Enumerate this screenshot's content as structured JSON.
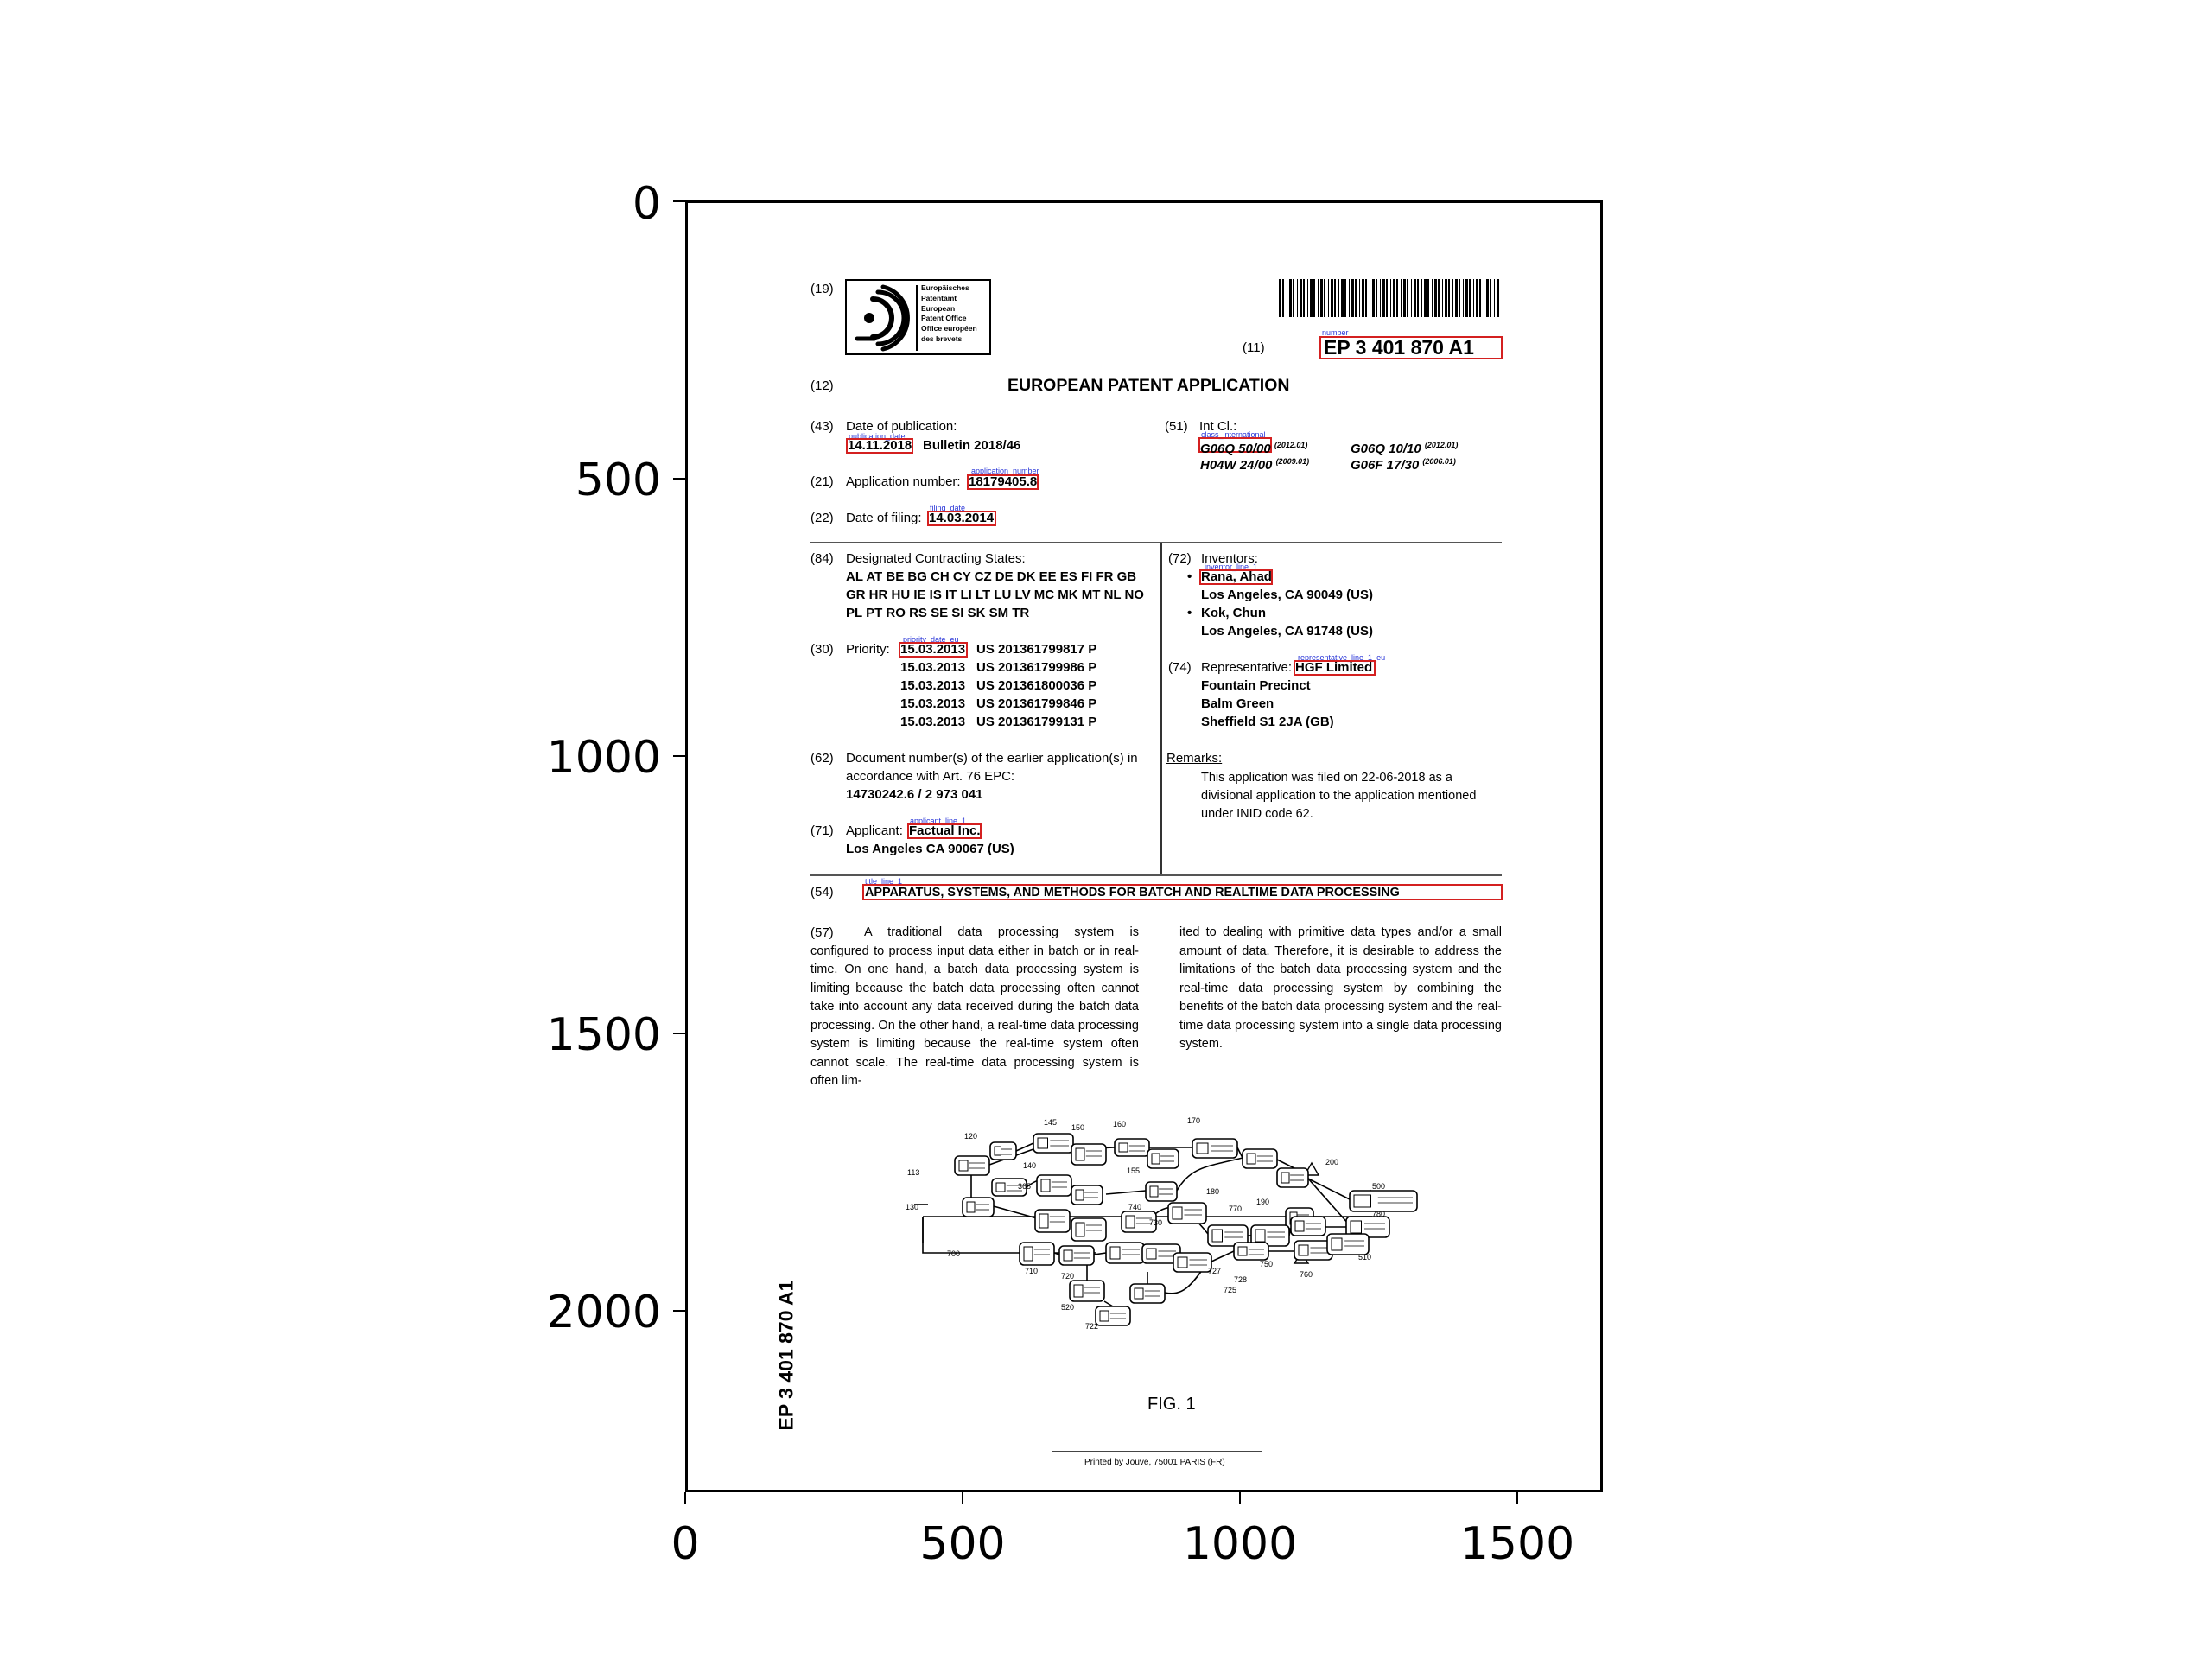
{
  "axes": {
    "x_ticks": [
      "0",
      "500",
      "1000",
      "1500"
    ],
    "y_ticks": [
      "0",
      "500",
      "1000",
      "1500",
      "2000"
    ]
  },
  "patent": {
    "inid_19": "(19)",
    "office_logo_lines": [
      "Europäisches",
      "Patentamt",
      "European",
      "Patent Office",
      "Office européen",
      "des brevets"
    ],
    "inid_11": "(11)",
    "number": "EP 3 401 870 A1",
    "inid_12": "(12)",
    "doc_type": "EUROPEAN PATENT APPLICATION",
    "inid_43": "(43)",
    "pub_label": "Date of publication:",
    "publication_date": "14.11.2018",
    "bulletin": "Bulletin 2018/46",
    "inid_51": "(51)",
    "intcl_label": "Int Cl.:",
    "class_1": "G06Q 50/00",
    "class_1_ver": "(2012.01)",
    "class_2": "G06Q 10/10",
    "class_2_ver": "(2012.01)",
    "class_3": "H04W 24/00",
    "class_3_ver": "(2009.01)",
    "class_4": "G06F 17/30",
    "class_4_ver": "(2006.01)",
    "inid_21": "(21)",
    "appnum_label": "Application number:",
    "application_number": "18179405.8",
    "inid_22": "(22)",
    "filing_label": "Date of filing:",
    "filing_date": "14.03.2014",
    "inid_84": "(84)",
    "states_label": "Designated Contracting States:",
    "states_lines": [
      "AL AT BE BG CH CY CZ DE DK EE ES FI FR GB",
      "GR HR HU IE IS IT LI LT LU LV MC MK MT NL NO",
      "PL PT RO RS SE SI SK SM TR"
    ],
    "inid_72": "(72)",
    "inventors_label": "Inventors:",
    "inventor_1": "Rana, Ahad",
    "inventor_1_addr": "Los Angeles, CA 90049 (US)",
    "inventor_2": "Kok, Chun",
    "inventor_2_addr": "Los Angeles, CA 91748 (US)",
    "inid_30": "(30)",
    "priority_label": "Priority:",
    "priorities": [
      {
        "date": "15.03.2013",
        "number": "US 201361799817 P"
      },
      {
        "date": "15.03.2013",
        "number": "US 201361799986 P"
      },
      {
        "date": "15.03.2013",
        "number": "US 201361800036 P"
      },
      {
        "date": "15.03.2013",
        "number": "US 201361799846 P"
      },
      {
        "date": "15.03.2013",
        "number": "US 201361799131 P"
      }
    ],
    "inid_74": "(74)",
    "rep_label": "Representative:",
    "representative": "HGF Limited",
    "rep_addr": [
      "Fountain Precinct",
      "Balm Green",
      "Sheffield S1 2JA (GB)"
    ],
    "inid_62": "(62)",
    "earlier_label_1": "Document number(s) of the earlier application(s) in",
    "earlier_label_2": "accordance with Art. 76 EPC:",
    "earlier_numbers": "14730242.6 / 2 973 041",
    "remarks_label": "Remarks:",
    "remarks_lines": [
      "This application was filed on 22-06-2018 as a",
      "divisional application to the application mentioned",
      "under INID code 62."
    ],
    "inid_71": "(71)",
    "applicant_label": "Applicant:",
    "applicant": "Factual Inc.",
    "applicant_addr": "Los Angeles CA 90067 (US)",
    "inid_54": "(54)",
    "title": "APPARATUS, SYSTEMS, AND METHODS FOR BATCH AND REALTIME DATA PROCESSING",
    "inid_57": "(57)",
    "abstract_left": "A traditional data processing system is configured to process input data either in batch or in real-time. On one hand, a batch data processing system is limiting because the batch data processing often cannot take into account any data received during the batch data processing. On the other hand, a real-time data processing system is limiting because the real-time system often cannot scale. The real-time data processing system is often lim-",
    "abstract_right": "ited to dealing with primitive data types and/or a small amount of data. Therefore, it is desirable to address the limitations of the batch data processing system and the real-time data processing system by combining the benefits of the batch data processing system and the real-time data processing system into a single data processing system.",
    "fig_caption": "FIG. 1",
    "side_number": "EP 3 401 870 A1",
    "printer": "Printed by Jouve, 75001 PARIS (FR)"
  },
  "annotations": {
    "number": "number",
    "publication_date": "publication_date",
    "class_international": "class_international",
    "application_number": "application_number",
    "filing_date": "filing_date",
    "inventor_line_1": "inventor_line_1",
    "priority_date_eu": "priority_date_eu",
    "representative_line_1_eu": "representative_line_1_eu",
    "applicant_line_1": "applicant_line_1",
    "title_line_1": "title_line_1"
  },
  "figure_labels": [
    "145",
    "150",
    "160",
    "170",
    "120",
    "140",
    "155",
    "180",
    "190",
    "200",
    "113",
    "365",
    "740",
    "770",
    "500",
    "130",
    "700",
    "710",
    "720",
    "730",
    "750",
    "760",
    "780",
    "510",
    "520",
    "722",
    "725",
    "727",
    "728"
  ]
}
